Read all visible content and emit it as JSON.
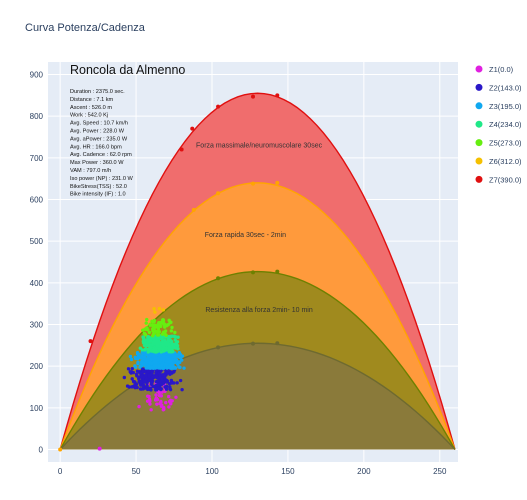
{
  "window": {
    "title": "Curva Potenza/Cadenza"
  },
  "chart_data": {
    "type": "scatter",
    "title": "Roncola da Almenno",
    "xlabel": "",
    "ylabel": "",
    "xlim": [
      -8,
      262
    ],
    "ylim": [
      -30,
      930
    ],
    "x_ticks": [
      0,
      50,
      100,
      150,
      200,
      250
    ],
    "y_ticks": [
      0,
      100,
      200,
      300,
      400,
      500,
      600,
      700,
      800,
      900
    ],
    "grid": true,
    "legend_position": "right",
    "stats": [
      "Duration : 2375.0 sec.",
      "Distance : 7.1 km",
      "Ascent : 526.0 m",
      "Work : 542.0 Kj",
      "Avg. Speed : 10.7 km/h",
      "Avg. Power : 228.0 W",
      "Avg. aPower : 235.0 W",
      "Avg. HR : 166.0 bpm",
      "Avg. Cadence : 62.0 rpm",
      "Max Power : 360.0 W",
      "VAM : 797.0 m/h",
      "Iso power (NP) : 231.0 W",
      "BikeStress(TSS) : 52.0",
      "Bike intensity (IF) : 1.0"
    ],
    "zones": [
      {
        "label": "Forza massimale/neuromuscolare 30sec",
        "peak": {
          "x": 130,
          "y": 855
        },
        "fill": "#f06d6d",
        "line": "#e01010",
        "label_at": {
          "x": 131,
          "y": 725
        }
      },
      {
        "label": "Forza rapida 30sec - 2min",
        "peak": {
          "x": 130,
          "y": 640
        },
        "fill": "#ff9a3c",
        "line": "#ffa500",
        "label_at": {
          "x": 122,
          "y": 510
        }
      },
      {
        "label": "Resistenza alla forza 2min- 10 min",
        "peak": {
          "x": 130,
          "y": 427
        },
        "fill": "#a08a1e",
        "line": "#6e8000",
        "label_at": {
          "x": 131,
          "y": 330
        }
      },
      {
        "label": "",
        "peak": {
          "x": 130,
          "y": 255
        },
        "fill": "#8a7a3a",
        "line": "#6e6a30",
        "label_at": null
      }
    ],
    "curve_points": [
      {
        "x": 0,
        "y": 0,
        "color": "#ffa500"
      },
      {
        "x": 20,
        "y": 260,
        "color": "#e01010"
      },
      {
        "x": 80,
        "y": 720,
        "color": "#e01010"
      },
      {
        "x": 87,
        "y": 770,
        "color": "#e01010"
      },
      {
        "x": 104,
        "y": 823,
        "color": "#e01010"
      },
      {
        "x": 127,
        "y": 847,
        "color": "#e01010"
      },
      {
        "x": 143,
        "y": 850,
        "color": "#e01010"
      },
      {
        "x": 88,
        "y": 575,
        "color": "#ffa500"
      },
      {
        "x": 104,
        "y": 615,
        "color": "#ffa500"
      },
      {
        "x": 127,
        "y": 638,
        "color": "#ffa500"
      },
      {
        "x": 143,
        "y": 640,
        "color": "#ffa500"
      },
      {
        "x": 104,
        "y": 411,
        "color": "#6e8000"
      },
      {
        "x": 127,
        "y": 425,
        "color": "#6e8000"
      },
      {
        "x": 143,
        "y": 427,
        "color": "#6e8000"
      },
      {
        "x": 104,
        "y": 245,
        "color": "#6e6a30"
      },
      {
        "x": 127,
        "y": 254,
        "color": "#6e6a30"
      },
      {
        "x": 143,
        "y": 255,
        "color": "#6e6a30"
      },
      {
        "x": 26,
        "y": 2,
        "color": "#e020e0"
      }
    ],
    "series": [
      {
        "name": "Z1(0.0)",
        "color": "#e020e0",
        "ymin": 95,
        "ymax": 160,
        "xmin": 48,
        "xmax": 82,
        "count": 60
      },
      {
        "name": "Z2(143.0)",
        "color": "#2a18c8",
        "ymin": 143,
        "ymax": 195,
        "xmin": 40,
        "xmax": 82,
        "count": 220
      },
      {
        "name": "Z3(195.0)",
        "color": "#10a8f0",
        "ymin": 195,
        "ymax": 234,
        "xmin": 43,
        "xmax": 85,
        "count": 420
      },
      {
        "name": "Z4(234.0)",
        "color": "#20e888",
        "ymin": 234,
        "ymax": 273,
        "xmin": 48,
        "xmax": 83,
        "count": 230
      },
      {
        "name": "Z5(273.0)",
        "color": "#66ee10",
        "ymin": 273,
        "ymax": 312,
        "xmin": 52,
        "xmax": 78,
        "count": 70
      },
      {
        "name": "Z6(312.0)",
        "color": "#f5c000",
        "ymin": 312,
        "ymax": 360,
        "xmin": 58,
        "xmax": 70,
        "count": 4
      },
      {
        "name": "Z7(390.0)",
        "color": "#e01010",
        "ymin": 0,
        "ymax": 0,
        "xmin": 0,
        "xmax": 0,
        "count": 0
      }
    ]
  }
}
